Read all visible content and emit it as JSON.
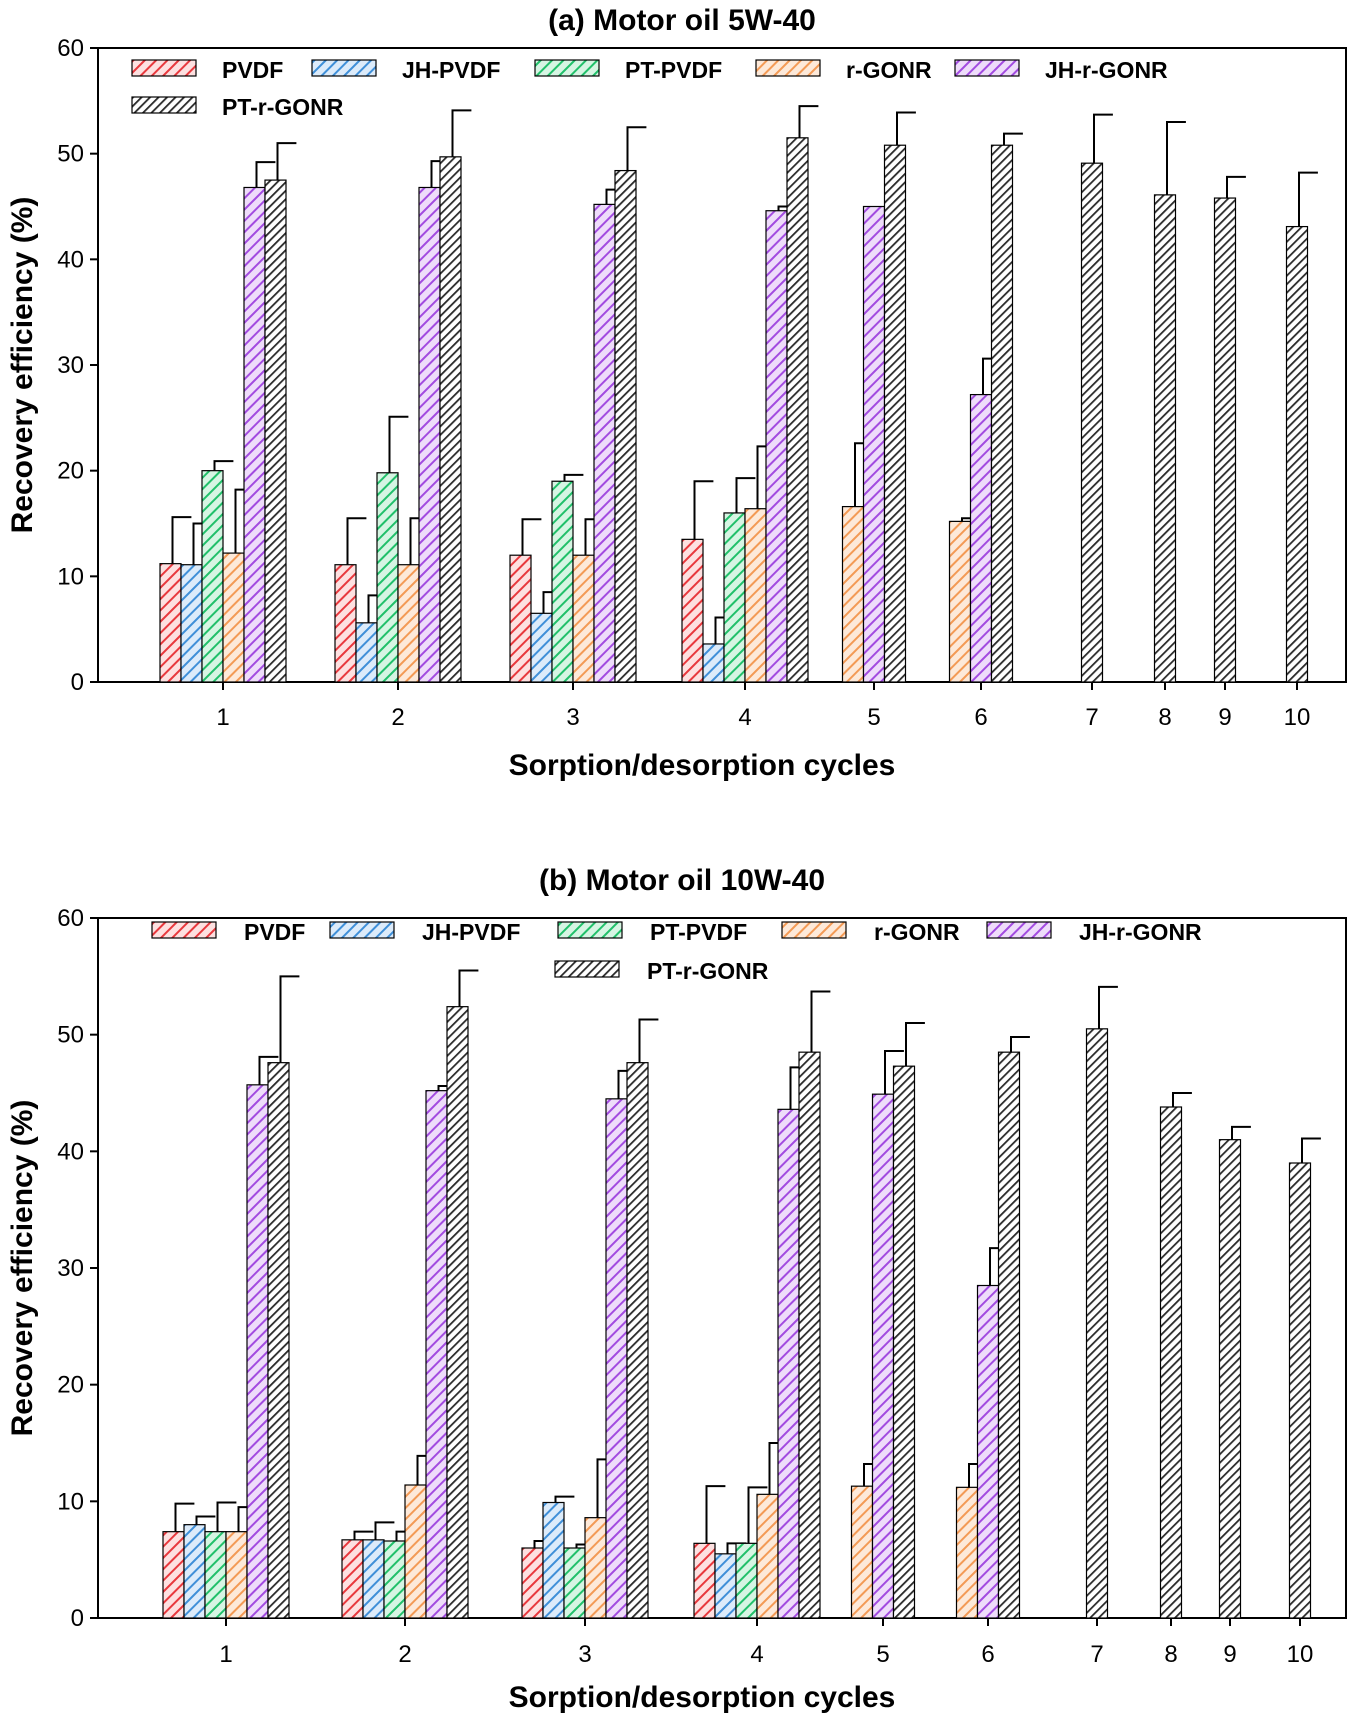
{
  "chart_data": [
    {
      "type": "bar",
      "title": "(a) Motor oil 5W-40",
      "xlabel": "Sorption/desorption cycles",
      "ylabel": "Recovery efficiency (%)",
      "ylim": [
        0,
        60
      ],
      "yticks": [
        "0",
        "10",
        "20",
        "30",
        "40",
        "50",
        "60"
      ],
      "categories": [
        "1",
        "2",
        "3",
        "4",
        "5",
        "6",
        "7",
        "8",
        "9",
        "10"
      ],
      "series": [
        {
          "name": "PVDF",
          "color": "#e8383d",
          "values": [
            11.2,
            11.1,
            12.0,
            13.5,
            null,
            null,
            null,
            null,
            null,
            null
          ],
          "errors": [
            4.4,
            4.4,
            3.4,
            5.5,
            null,
            null,
            null,
            null,
            null,
            null
          ]
        },
        {
          "name": "JH-PVDF",
          "color": "#3f8fd8",
          "values": [
            11.1,
            5.6,
            6.5,
            3.6,
            null,
            null,
            null,
            null,
            null,
            null
          ],
          "errors": [
            3.9,
            2.6,
            2.0,
            2.5,
            null,
            null,
            null,
            null,
            null,
            null
          ]
        },
        {
          "name": "PT-PVDF",
          "color": "#21c06a",
          "values": [
            20.0,
            19.8,
            19.0,
            16.0,
            null,
            null,
            null,
            null,
            null,
            null
          ],
          "errors": [
            0.9,
            5.3,
            0.6,
            3.3,
            null,
            null,
            null,
            null,
            null,
            null
          ]
        },
        {
          "name": "r-GONR",
          "color": "#f39a55",
          "values": [
            12.2,
            11.1,
            12.0,
            16.4,
            16.6,
            15.2,
            null,
            null,
            null,
            null
          ],
          "errors": [
            6.0,
            4.4,
            3.4,
            5.9,
            6.0,
            0.3,
            null,
            null,
            null,
            null
          ]
        },
        {
          "name": "JH-r-GONR",
          "color": "#a24be0",
          "values": [
            46.8,
            46.8,
            45.2,
            44.6,
            45.0,
            27.2,
            null,
            null,
            null,
            null
          ],
          "errors": [
            2.4,
            2.5,
            1.4,
            0.4,
            null,
            3.4,
            null,
            null,
            null,
            null
          ]
        },
        {
          "name": "PT-r-GONR",
          "color": "#3c3c3c",
          "values": [
            47.5,
            49.7,
            48.4,
            51.5,
            50.8,
            50.8,
            49.1,
            46.1,
            45.8,
            43.1
          ],
          "errors": [
            3.5,
            4.4,
            4.1,
            3.0,
            3.1,
            1.1,
            4.6,
            6.9,
            2.0,
            5.1
          ]
        }
      ]
    },
    {
      "type": "bar",
      "title": "(b) Motor oil 10W-40",
      "xlabel": "Sorption/desorption cycles",
      "ylabel": "Recovery efficiency (%)",
      "ylim": [
        0,
        60
      ],
      "yticks": [
        "0",
        "10",
        "20",
        "30",
        "40",
        "50",
        "60"
      ],
      "categories": [
        "1",
        "2",
        "3",
        "4",
        "5",
        "6",
        "7",
        "8",
        "9",
        "10"
      ],
      "series": [
        {
          "name": "PVDF",
          "color": "#e8383d",
          "values": [
            7.4,
            6.7,
            6.0,
            6.4,
            null,
            null,
            null,
            null,
            null,
            null
          ],
          "errors": [
            2.4,
            0.7,
            0.6,
            4.9,
            null,
            null,
            null,
            null,
            null,
            null
          ]
        },
        {
          "name": "JH-PVDF",
          "color": "#3f8fd8",
          "values": [
            8.0,
            6.7,
            9.9,
            5.5,
            null,
            null,
            null,
            null,
            null,
            null
          ],
          "errors": [
            0.7,
            1.5,
            0.5,
            0.9,
            null,
            null,
            null,
            null,
            null,
            null
          ]
        },
        {
          "name": "PT-PVDF",
          "color": "#21c06a",
          "values": [
            7.4,
            6.6,
            6.0,
            6.4,
            null,
            null,
            null,
            null,
            null,
            null
          ],
          "errors": [
            2.5,
            0.8,
            0.3,
            4.8,
            null,
            null,
            null,
            null,
            null,
            null
          ]
        },
        {
          "name": "r-GONR",
          "color": "#f39a55",
          "values": [
            7.4,
            11.4,
            8.6,
            10.6,
            11.3,
            11.2,
            null,
            null,
            null,
            null
          ],
          "errors": [
            2.1,
            2.5,
            5.0,
            4.4,
            1.9,
            2.0,
            null,
            null,
            null,
            null
          ]
        },
        {
          "name": "JH-r-GONR",
          "color": "#a24be0",
          "values": [
            45.7,
            45.2,
            44.5,
            43.6,
            44.9,
            28.5,
            null,
            null,
            null,
            null
          ],
          "errors": [
            2.4,
            0.4,
            2.4,
            3.6,
            3.7,
            3.2,
            null,
            null,
            null,
            null
          ]
        },
        {
          "name": "PT-r-GONR",
          "color": "#3c3c3c",
          "values": [
            47.6,
            52.4,
            47.6,
            48.5,
            47.3,
            48.5,
            50.5,
            43.8,
            41.0,
            39.0
          ],
          "errors": [
            7.4,
            3.1,
            3.7,
            5.2,
            3.7,
            1.3,
            3.6,
            1.2,
            1.1,
            2.1
          ]
        }
      ]
    }
  ]
}
